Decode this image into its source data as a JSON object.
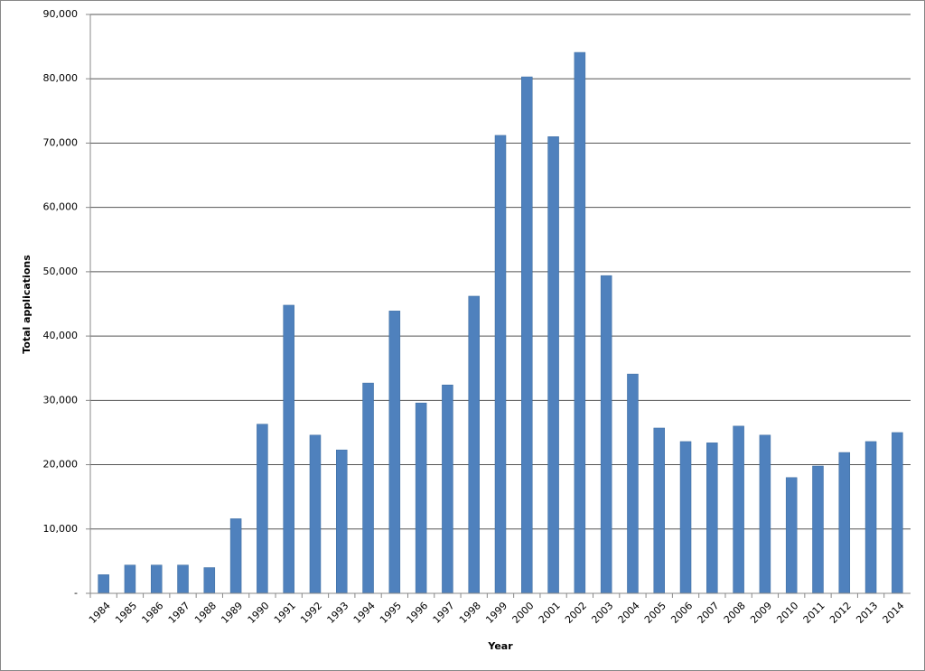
{
  "chart_data": {
    "type": "bar",
    "x_label": "Year",
    "y_label": "Total applications",
    "categories": [
      "1984",
      "1985",
      "1986",
      "1987",
      "1988",
      "1989",
      "1990",
      "1991",
      "1992",
      "1993",
      "1994",
      "1995",
      "1996",
      "1997",
      "1998",
      "1999",
      "2000",
      "2001",
      "2002",
      "2003",
      "2004",
      "2005",
      "2006",
      "2007",
      "2008",
      "2009",
      "2010",
      "2011",
      "2012",
      "2013",
      "2014"
    ],
    "values": [
      2900,
      4400,
      4400,
      4400,
      4000,
      11600,
      26300,
      44800,
      24600,
      22300,
      32700,
      43900,
      29600,
      32400,
      46200,
      71200,
      80300,
      71000,
      84100,
      49400,
      34100,
      25700,
      23600,
      23400,
      26000,
      24600,
      18000,
      19800,
      21900,
      23600,
      25000
    ],
    "color": "#4f81bd",
    "ylim": [
      0,
      90000
    ],
    "yticks": [
      {
        "value": 0,
        "label": "-"
      },
      {
        "value": 10000,
        "label": "10,000"
      },
      {
        "value": 20000,
        "label": "20,000"
      },
      {
        "value": 30000,
        "label": "30,000"
      },
      {
        "value": 40000,
        "label": "40,000"
      },
      {
        "value": 50000,
        "label": "50,000"
      },
      {
        "value": 60000,
        "label": "60,000"
      },
      {
        "value": 70000,
        "label": "70,000"
      },
      {
        "value": 80000,
        "label": "80,000"
      },
      {
        "value": 90000,
        "label": "90,000"
      }
    ],
    "grid": true
  }
}
